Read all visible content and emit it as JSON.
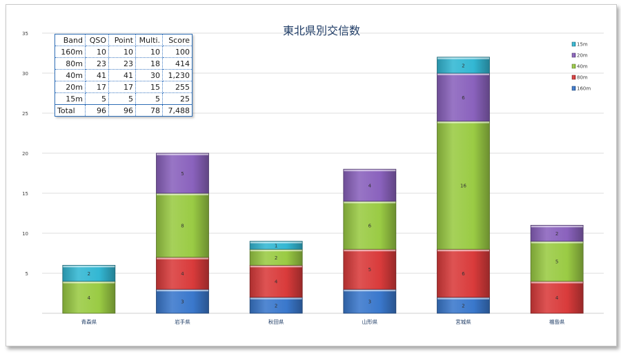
{
  "chart_data": {
    "type": "bar",
    "stacked": true,
    "title": "東北県別交信数",
    "categories": [
      "青森県",
      "岩手県",
      "秋田県",
      "山形県",
      "宮城県",
      "福島県"
    ],
    "series": [
      {
        "name": "160m",
        "color": "#3a78cc",
        "values": [
          0,
          3,
          2,
          3,
          2,
          0
        ]
      },
      {
        "name": "80m",
        "color": "#d93b3b",
        "values": [
          0,
          4,
          4,
          5,
          6,
          4
        ]
      },
      {
        "name": "40m",
        "color": "#9acb44",
        "values": [
          4,
          8,
          2,
          6,
          16,
          5
        ]
      },
      {
        "name": "20m",
        "color": "#8a62bd",
        "values": [
          0,
          5,
          0,
          4,
          6,
          2
        ]
      },
      {
        "name": "15m",
        "color": "#33b7d3",
        "values": [
          2,
          0,
          1,
          0,
          2,
          0
        ]
      }
    ],
    "y_ticks": [
      5,
      10,
      15,
      20,
      25,
      30,
      35
    ],
    "ylim": [
      0,
      35
    ],
    "grid": true,
    "legend_position": "top-right",
    "legend_order": [
      "15m",
      "20m",
      "40m",
      "80m",
      "160m"
    ]
  },
  "table": {
    "headers": [
      "Band",
      "QSO",
      "Point",
      "Multi.",
      "Score"
    ],
    "rows": [
      [
        "160m",
        "10",
        "10",
        "10",
        "100"
      ],
      [
        "80m",
        "23",
        "23",
        "18",
        "414"
      ],
      [
        "40m",
        "41",
        "41",
        "30",
        "1,230"
      ],
      [
        "20m",
        "17",
        "17",
        "15",
        "255"
      ],
      [
        "15m",
        "5",
        "5",
        "5",
        "25"
      ]
    ],
    "total": [
      "Total",
      "96",
      "96",
      "78",
      "7,488"
    ]
  }
}
